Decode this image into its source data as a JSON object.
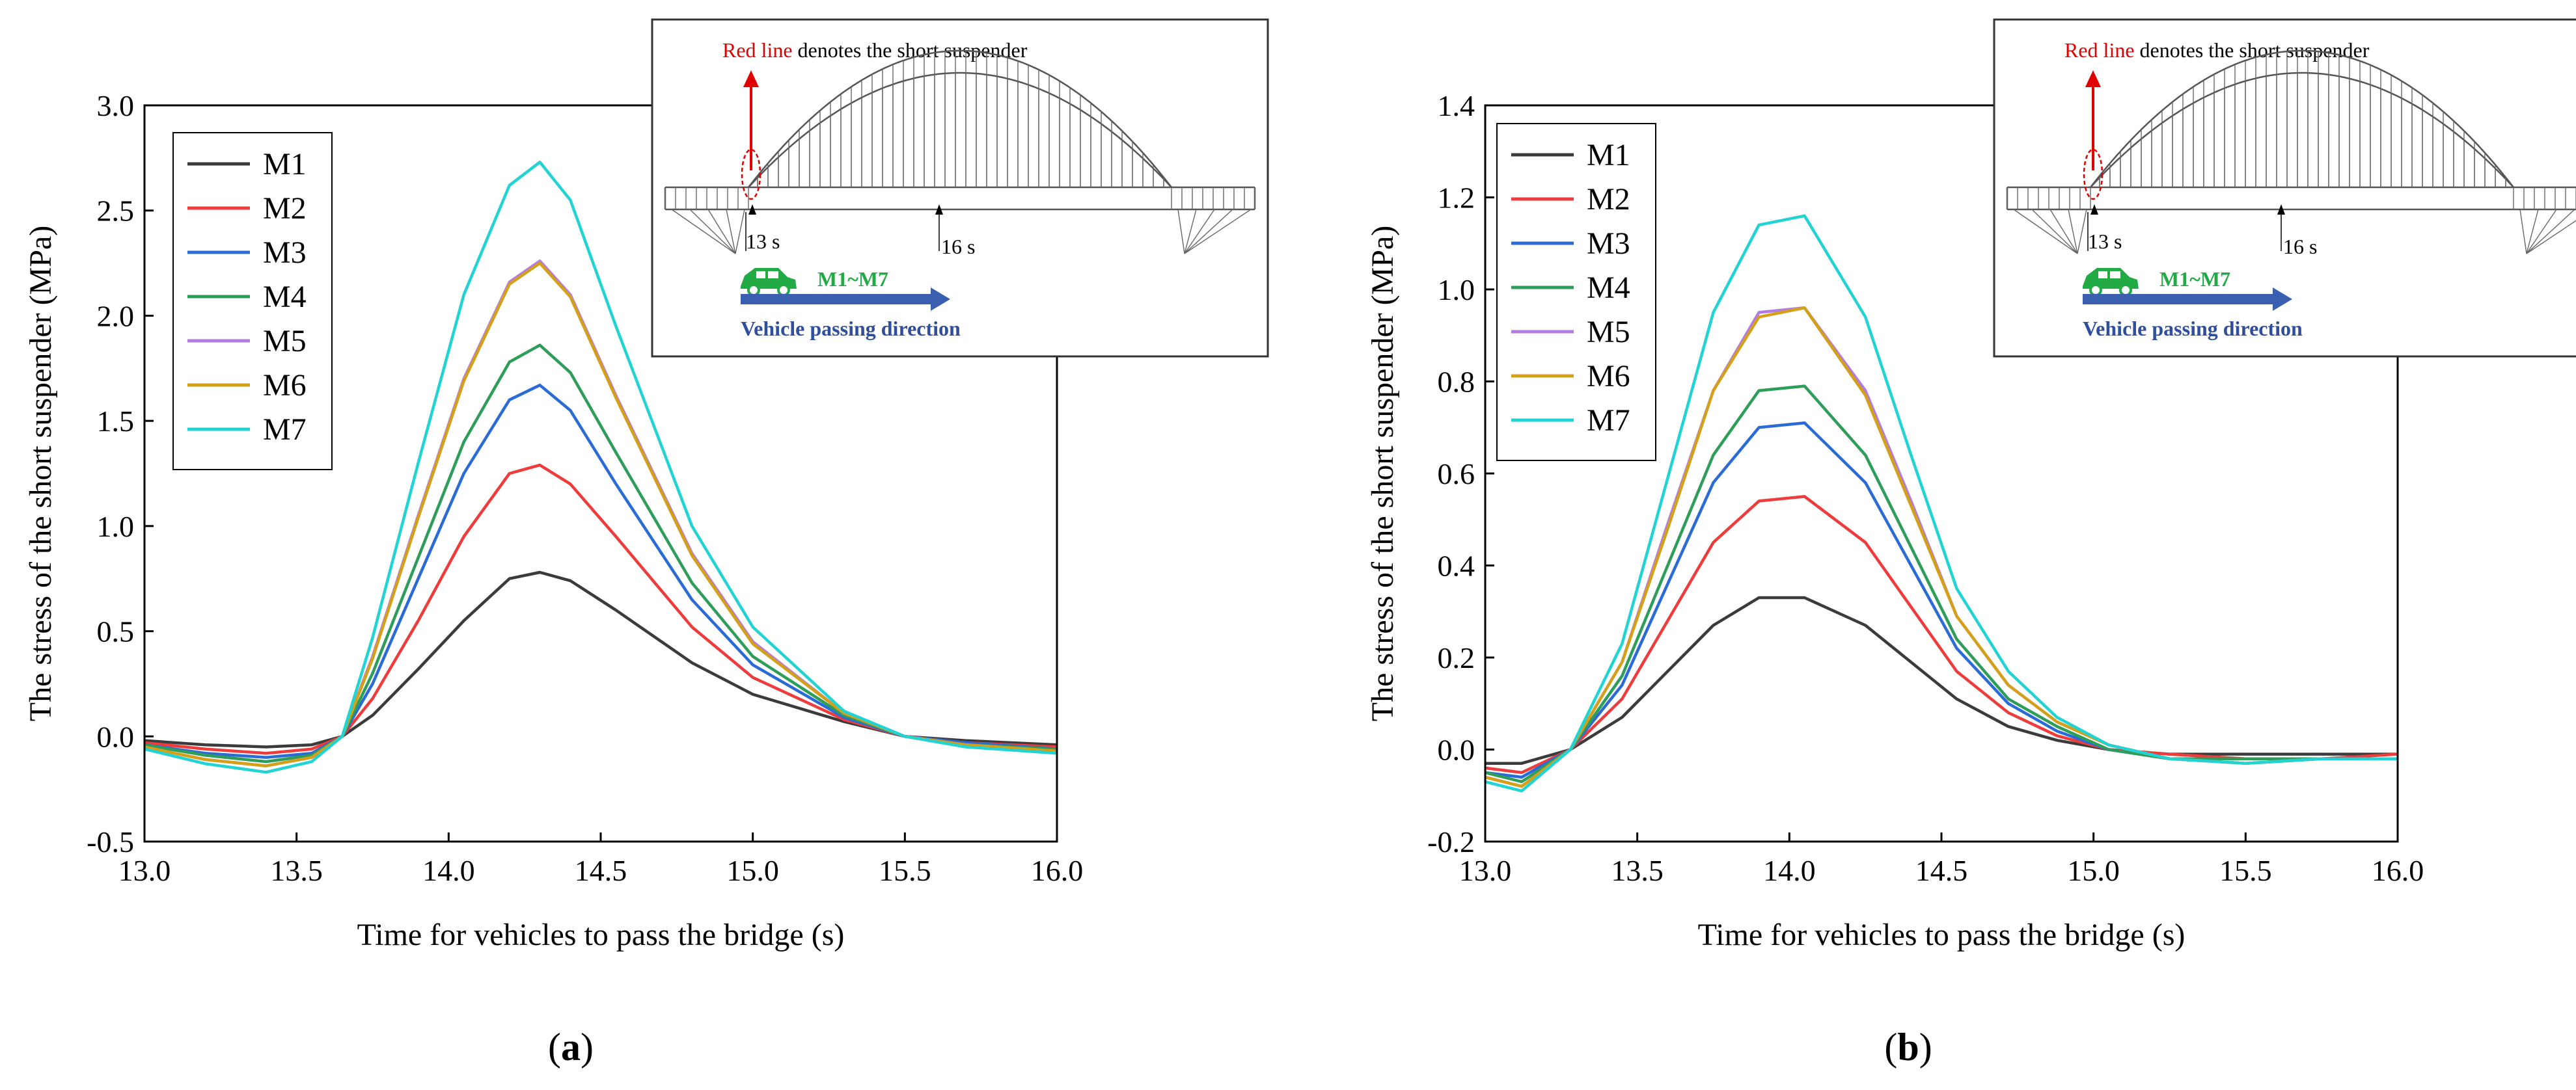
{
  "colors": {
    "M1": "#3b3b3b",
    "M2": "#ee3b3b",
    "M3": "#2a6bd6",
    "M4": "#2e9d5a",
    "M5": "#b27ce0",
    "M6": "#d4a017",
    "M7": "#22d3d3",
    "red_line": "#e00000",
    "car": "#22aa44",
    "arrow": "#3a5fb0",
    "inset_caption": "#2f4f9e"
  },
  "inset": {
    "red_line_label": "Red line",
    "rest_label": " denotes the short suspender",
    "t_start": "13 s",
    "t_end": "16 s",
    "models": "M1~M7",
    "direction": "Vehicle passing direction"
  },
  "chart_data": [
    {
      "type": "line",
      "panel_label": "(a)",
      "xlabel": "Time for vehicles to pass the bridge (s)",
      "ylabel": "The stress of the short suspender (MPa)",
      "xlim": [
        13.0,
        16.0
      ],
      "ylim": [
        -0.5,
        3.0
      ],
      "xticks": [
        "13.0",
        "13.5",
        "14.0",
        "14.5",
        "15.0",
        "15.5",
        "16.0"
      ],
      "yticks": [
        "-0.5",
        "0.0",
        "0.5",
        "1.0",
        "1.5",
        "2.0",
        "2.5",
        "3.0"
      ],
      "legend": [
        "M1",
        "M2",
        "M3",
        "M4",
        "M5",
        "M6",
        "M7"
      ],
      "x": [
        13.0,
        13.2,
        13.4,
        13.55,
        13.65,
        13.75,
        13.9,
        14.05,
        14.2,
        14.3,
        14.4,
        14.55,
        14.8,
        15.0,
        15.3,
        15.5,
        15.7,
        16.0
      ],
      "series": [
        {
          "name": "M1",
          "values": [
            -0.02,
            -0.04,
            -0.05,
            -0.04,
            0.0,
            0.1,
            0.32,
            0.55,
            0.75,
            0.78,
            0.74,
            0.6,
            0.35,
            0.2,
            0.07,
            0.0,
            -0.02,
            -0.04
          ]
        },
        {
          "name": "M2",
          "values": [
            -0.03,
            -0.06,
            -0.08,
            -0.06,
            0.0,
            0.18,
            0.55,
            0.95,
            1.25,
            1.29,
            1.2,
            0.95,
            0.52,
            0.28,
            0.08,
            0.0,
            -0.03,
            -0.05
          ]
        },
        {
          "name": "M3",
          "values": [
            -0.04,
            -0.08,
            -0.1,
            -0.08,
            0.0,
            0.25,
            0.75,
            1.25,
            1.6,
            1.67,
            1.55,
            1.2,
            0.65,
            0.34,
            0.09,
            0.0,
            -0.03,
            -0.06
          ]
        },
        {
          "name": "M4",
          "values": [
            -0.04,
            -0.09,
            -0.12,
            -0.09,
            0.0,
            0.3,
            0.85,
            1.4,
            1.78,
            1.86,
            1.73,
            1.35,
            0.73,
            0.38,
            0.1,
            0.0,
            -0.04,
            -0.06
          ]
        },
        {
          "name": "M5",
          "values": [
            -0.05,
            -0.11,
            -0.14,
            -0.1,
            0.0,
            0.38,
            1.05,
            1.7,
            2.16,
            2.26,
            2.1,
            1.62,
            0.87,
            0.45,
            0.11,
            0.0,
            -0.04,
            -0.07
          ]
        },
        {
          "name": "M6",
          "values": [
            -0.05,
            -0.11,
            -0.14,
            -0.1,
            0.0,
            0.37,
            1.04,
            1.69,
            2.15,
            2.25,
            2.09,
            1.61,
            0.86,
            0.44,
            0.11,
            0.0,
            -0.04,
            -0.07
          ]
        },
        {
          "name": "M7",
          "values": [
            -0.06,
            -0.13,
            -0.17,
            -0.12,
            0.0,
            0.47,
            1.3,
            2.1,
            2.62,
            2.73,
            2.55,
            1.95,
            1.0,
            0.52,
            0.12,
            0.0,
            -0.05,
            -0.08
          ]
        }
      ]
    },
    {
      "type": "line",
      "panel_label": "(b)",
      "xlabel": "Time for vehicles to pass the bridge (s)",
      "ylabel": "The stress of the short suspender (MPa)",
      "xlim": [
        13.0,
        16.0
      ],
      "ylim": [
        -0.2,
        1.4
      ],
      "xticks": [
        "13.0",
        "13.5",
        "14.0",
        "14.5",
        "15.0",
        "15.5",
        "16.0"
      ],
      "yticks": [
        "-0.2",
        "0.0",
        "0.2",
        "0.4",
        "0.6",
        "0.8",
        "1.0",
        "1.2",
        "1.4"
      ],
      "legend": [
        "M1",
        "M2",
        "M3",
        "M4",
        "M5",
        "M6",
        "M7"
      ],
      "x": [
        13.0,
        13.12,
        13.28,
        13.45,
        13.6,
        13.75,
        13.9,
        14.05,
        14.25,
        14.4,
        14.55,
        14.72,
        14.88,
        15.05,
        15.25,
        15.5,
        15.75,
        16.0
      ],
      "series": [
        {
          "name": "M1",
          "values": [
            -0.03,
            -0.03,
            0.0,
            0.07,
            0.17,
            0.27,
            0.33,
            0.33,
            0.27,
            0.19,
            0.11,
            0.05,
            0.02,
            0.0,
            -0.01,
            -0.01,
            -0.01,
            -0.01
          ]
        },
        {
          "name": "M2",
          "values": [
            -0.04,
            -0.05,
            0.0,
            0.11,
            0.28,
            0.45,
            0.54,
            0.55,
            0.45,
            0.31,
            0.17,
            0.08,
            0.03,
            0.0,
            -0.01,
            -0.02,
            -0.02,
            -0.01
          ]
        },
        {
          "name": "M3",
          "values": [
            -0.05,
            -0.06,
            0.0,
            0.14,
            0.36,
            0.58,
            0.7,
            0.71,
            0.58,
            0.4,
            0.22,
            0.1,
            0.04,
            0.0,
            -0.02,
            -0.02,
            -0.02,
            -0.02
          ]
        },
        {
          "name": "M4",
          "values": [
            -0.05,
            -0.07,
            0.0,
            0.16,
            0.4,
            0.64,
            0.78,
            0.79,
            0.64,
            0.44,
            0.24,
            0.11,
            0.05,
            0.0,
            -0.02,
            -0.02,
            -0.02,
            -0.02
          ]
        },
        {
          "name": "M5",
          "values": [
            -0.06,
            -0.08,
            0.0,
            0.19,
            0.49,
            0.78,
            0.95,
            0.96,
            0.78,
            0.54,
            0.29,
            0.14,
            0.06,
            0.01,
            -0.02,
            -0.03,
            -0.02,
            -0.02
          ]
        },
        {
          "name": "M6",
          "values": [
            -0.06,
            -0.08,
            0.0,
            0.19,
            0.48,
            0.78,
            0.94,
            0.96,
            0.77,
            0.53,
            0.29,
            0.14,
            0.06,
            0.01,
            -0.02,
            -0.03,
            -0.02,
            -0.02
          ]
        },
        {
          "name": "M7",
          "values": [
            -0.07,
            -0.09,
            0.0,
            0.23,
            0.59,
            0.95,
            1.14,
            1.16,
            0.94,
            0.64,
            0.35,
            0.17,
            0.07,
            0.01,
            -0.02,
            -0.03,
            -0.02,
            -0.02
          ]
        }
      ]
    }
  ]
}
